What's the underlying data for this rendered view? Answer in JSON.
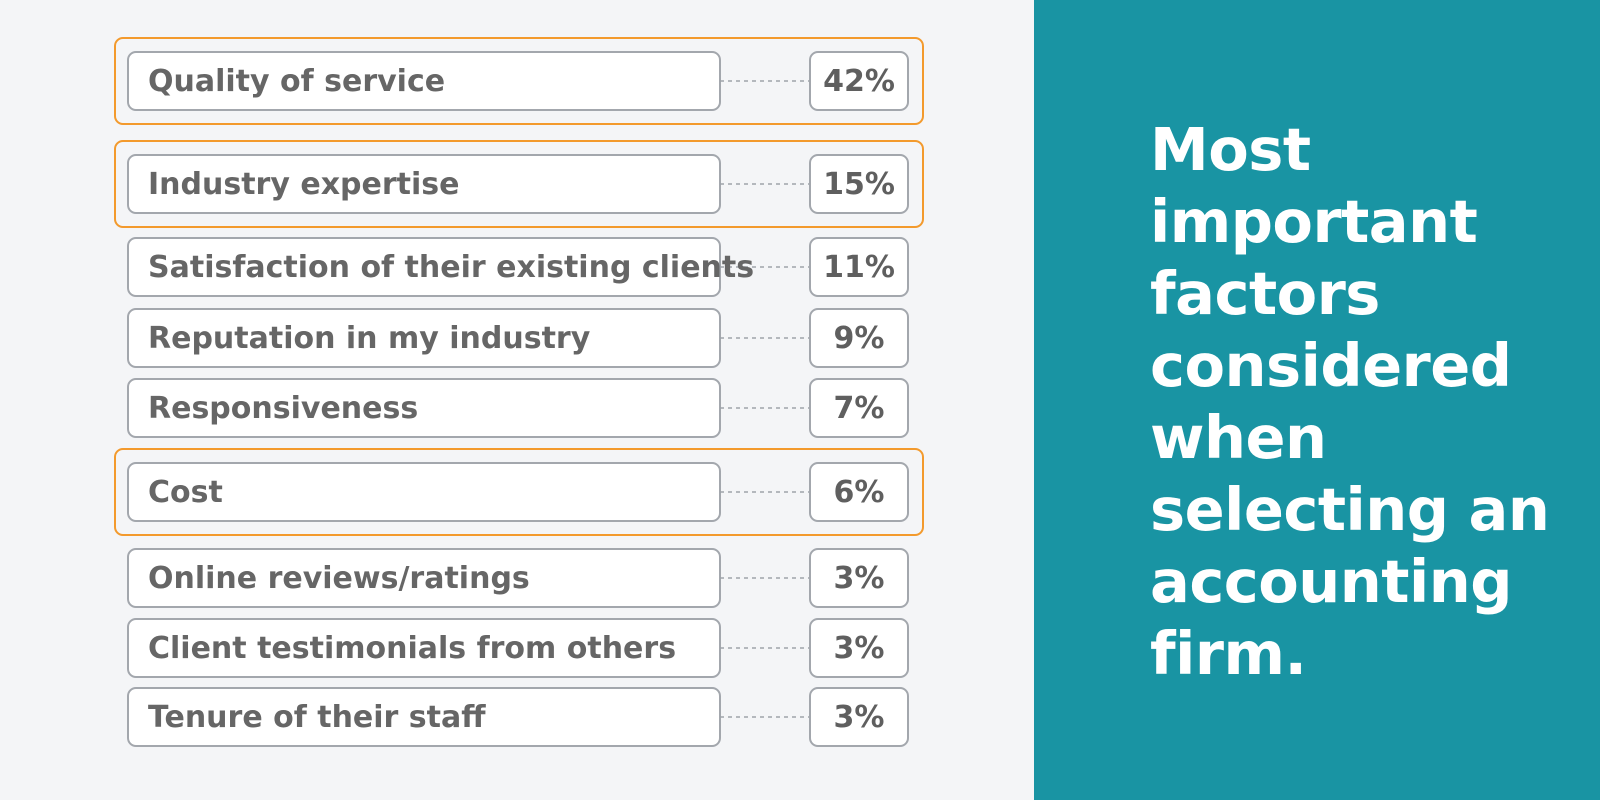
{
  "chart_data": {
    "type": "table",
    "title": "Most important factors considered when selecting an accounting firm.",
    "series": [
      {
        "values": [
          42,
          15,
          11,
          9,
          7,
          6,
          3,
          3,
          3
        ]
      }
    ],
    "categories": [
      "Quality of service",
      "Industry expertise",
      "Satisfaction of their existing clients",
      "Reputation in my industry",
      "Responsiveness",
      "Cost",
      "Online reviews/ratings",
      "Client testimonials from others",
      "Tenure of their staff"
    ],
    "rows": [
      {
        "label": "Quality of service",
        "value_text": "42%",
        "highlight": true
      },
      {
        "label": "Industry expertise",
        "value_text": "15%",
        "highlight": true
      },
      {
        "label": "Satisfaction of their existing clients",
        "value_text": "11%",
        "highlight": false
      },
      {
        "label": "Reputation in my industry",
        "value_text": "9%",
        "highlight": false
      },
      {
        "label": "Responsiveness",
        "value_text": "7%",
        "highlight": false
      },
      {
        "label": "Cost",
        "value_text": "6%",
        "highlight": true
      },
      {
        "label": "Online reviews/ratings",
        "value_text": "3%",
        "highlight": false
      },
      {
        "label": "Client testimonials from others",
        "value_text": "3%",
        "highlight": false
      },
      {
        "label": "Tenure of their staff",
        "value_text": "3%",
        "highlight": false
      }
    ],
    "colors": {
      "panel": "#1994a3",
      "highlight_border": "#f39a2d",
      "box_border": "#a3a7ad",
      "background": "#f4f5f7",
      "text": "#666666"
    }
  }
}
